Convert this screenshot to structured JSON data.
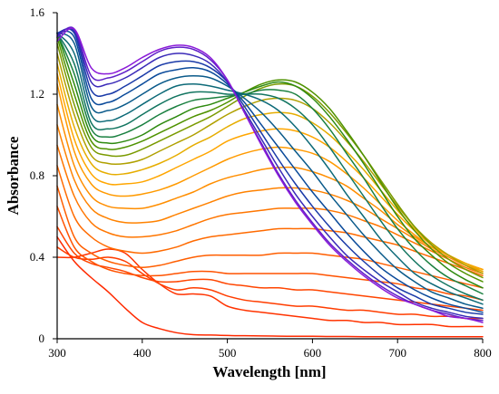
{
  "chart_data": {
    "type": "line",
    "title": "",
    "xlabel": "Wavelength [nm]",
    "ylabel": "Absorbance",
    "xlim": [
      300,
      800
    ],
    "ylim": [
      0,
      1.6
    ],
    "x_ticks": [
      300,
      400,
      500,
      600,
      700,
      800
    ],
    "y_ticks": [
      0,
      0.4,
      0.8,
      1.2,
      1.6
    ],
    "y_tick_labels": [
      "0",
      "0.4",
      "0.8",
      "1.2",
      "1.6"
    ],
    "grid": false,
    "legend": "none",
    "x": [
      300,
      320,
      340,
      360,
      380,
      400,
      420,
      440,
      460,
      480,
      500,
      520,
      540,
      560,
      580,
      600,
      620,
      640,
      660,
      680,
      700,
      720,
      740,
      760,
      780,
      800
    ],
    "series": [
      {
        "color": "#ff2a00",
        "values": [
          0.5,
          0.38,
          0.3,
          0.23,
          0.15,
          0.08,
          0.05,
          0.03,
          0.02,
          0.018,
          0.016,
          0.015,
          0.014,
          0.013,
          0.012,
          0.012,
          0.011,
          0.011,
          0.01,
          0.01,
          0.01,
          0.01,
          0.01,
          0.01,
          0.01,
          0.01
        ]
      },
      {
        "color": "#ff3300",
        "values": [
          0.4,
          0.4,
          0.42,
          0.44,
          0.42,
          0.34,
          0.27,
          0.22,
          0.22,
          0.21,
          0.16,
          0.14,
          0.13,
          0.12,
          0.11,
          0.1,
          0.09,
          0.09,
          0.08,
          0.08,
          0.07,
          0.07,
          0.07,
          0.06,
          0.06,
          0.06
        ]
      },
      {
        "color": "#ff3d00",
        "values": [
          0.45,
          0.4,
          0.39,
          0.4,
          0.38,
          0.32,
          0.27,
          0.24,
          0.25,
          0.24,
          0.21,
          0.19,
          0.18,
          0.17,
          0.16,
          0.16,
          0.15,
          0.14,
          0.14,
          0.13,
          0.12,
          0.12,
          0.11,
          0.11,
          0.1,
          0.1
        ]
      },
      {
        "color": "#ff4500",
        "values": [
          0.55,
          0.42,
          0.37,
          0.35,
          0.33,
          0.3,
          0.28,
          0.28,
          0.29,
          0.29,
          0.27,
          0.26,
          0.25,
          0.25,
          0.24,
          0.24,
          0.23,
          0.22,
          0.21,
          0.2,
          0.19,
          0.18,
          0.17,
          0.16,
          0.15,
          0.14
        ]
      },
      {
        "color": "#ff5200",
        "values": [
          0.65,
          0.45,
          0.38,
          0.34,
          0.32,
          0.31,
          0.31,
          0.32,
          0.33,
          0.33,
          0.32,
          0.32,
          0.32,
          0.32,
          0.32,
          0.32,
          0.31,
          0.3,
          0.29,
          0.28,
          0.27,
          0.25,
          0.24,
          0.22,
          0.21,
          0.19
        ]
      },
      {
        "color": "#ff5e00",
        "values": [
          0.75,
          0.5,
          0.42,
          0.38,
          0.36,
          0.35,
          0.36,
          0.38,
          0.4,
          0.41,
          0.41,
          0.41,
          0.41,
          0.42,
          0.42,
          0.42,
          0.41,
          0.4,
          0.39,
          0.37,
          0.35,
          0.33,
          0.31,
          0.29,
          0.27,
          0.25
        ]
      },
      {
        "color": "#ff6a00",
        "values": [
          0.85,
          0.6,
          0.5,
          0.45,
          0.43,
          0.42,
          0.43,
          0.45,
          0.48,
          0.5,
          0.51,
          0.52,
          0.53,
          0.54,
          0.54,
          0.54,
          0.53,
          0.52,
          0.5,
          0.48,
          0.46,
          0.43,
          0.4,
          0.37,
          0.34,
          0.31
        ]
      },
      {
        "color": "#ff7600",
        "values": [
          0.95,
          0.7,
          0.57,
          0.52,
          0.5,
          0.5,
          0.51,
          0.53,
          0.56,
          0.59,
          0.61,
          0.62,
          0.63,
          0.64,
          0.64,
          0.64,
          0.63,
          0.61,
          0.58,
          0.55,
          0.51,
          0.47,
          0.43,
          0.39,
          0.35,
          0.32
        ]
      },
      {
        "color": "#ff8200",
        "values": [
          1.05,
          0.78,
          0.64,
          0.59,
          0.57,
          0.57,
          0.58,
          0.61,
          0.64,
          0.67,
          0.7,
          0.72,
          0.73,
          0.74,
          0.74,
          0.73,
          0.71,
          0.68,
          0.64,
          0.59,
          0.54,
          0.49,
          0.44,
          0.4,
          0.36,
          0.33
        ]
      },
      {
        "color": "#ff8e00",
        "values": [
          1.15,
          0.85,
          0.7,
          0.65,
          0.64,
          0.64,
          0.66,
          0.69,
          0.72,
          0.76,
          0.79,
          0.81,
          0.83,
          0.84,
          0.84,
          0.82,
          0.79,
          0.75,
          0.69,
          0.63,
          0.56,
          0.5,
          0.45,
          0.41,
          0.37,
          0.34
        ]
      },
      {
        "color": "#ff9a00",
        "values": [
          1.25,
          0.92,
          0.76,
          0.71,
          0.7,
          0.71,
          0.73,
          0.76,
          0.8,
          0.84,
          0.88,
          0.91,
          0.93,
          0.94,
          0.93,
          0.91,
          0.87,
          0.81,
          0.74,
          0.66,
          0.58,
          0.51,
          0.45,
          0.41,
          0.37,
          0.34
        ]
      },
      {
        "color": "#ffa600",
        "values": [
          1.3,
          0.98,
          0.81,
          0.76,
          0.76,
          0.77,
          0.8,
          0.84,
          0.88,
          0.92,
          0.97,
          1.0,
          1.02,
          1.03,
          1.02,
          0.99,
          0.94,
          0.87,
          0.79,
          0.7,
          0.61,
          0.53,
          0.46,
          0.41,
          0.37,
          0.34
        ]
      },
      {
        "color": "#e6ad00",
        "values": [
          1.35,
          1.04,
          0.86,
          0.81,
          0.81,
          0.83,
          0.86,
          0.9,
          0.95,
          0.99,
          1.04,
          1.08,
          1.1,
          1.11,
          1.1,
          1.06,
          1.0,
          0.92,
          0.83,
          0.73,
          0.63,
          0.54,
          0.47,
          0.41,
          0.37,
          0.33
        ]
      },
      {
        "color": "#b0a000",
        "values": [
          1.4,
          1.1,
          0.9,
          0.86,
          0.86,
          0.88,
          0.92,
          0.96,
          1.0,
          1.05,
          1.1,
          1.14,
          1.17,
          1.18,
          1.17,
          1.13,
          1.06,
          0.97,
          0.87,
          0.76,
          0.65,
          0.55,
          0.47,
          0.41,
          0.36,
          0.32
        ]
      },
      {
        "color": "#7a9a00",
        "values": [
          1.45,
          1.15,
          0.94,
          0.9,
          0.9,
          0.93,
          0.97,
          1.01,
          1.05,
          1.09,
          1.14,
          1.19,
          1.23,
          1.25,
          1.24,
          1.19,
          1.11,
          1.01,
          0.9,
          0.78,
          0.66,
          0.55,
          0.46,
          0.39,
          0.34,
          0.3
        ]
      },
      {
        "color": "#4f9200",
        "values": [
          1.48,
          1.2,
          0.97,
          0.93,
          0.94,
          0.97,
          1.01,
          1.05,
          1.09,
          1.12,
          1.16,
          1.21,
          1.25,
          1.27,
          1.26,
          1.21,
          1.13,
          1.02,
          0.9,
          0.77,
          0.64,
          0.53,
          0.44,
          0.37,
          0.32,
          0.28
        ]
      },
      {
        "color": "#2e8a10",
        "values": [
          1.5,
          1.25,
          1.0,
          0.96,
          0.97,
          1.0,
          1.05,
          1.09,
          1.13,
          1.15,
          1.18,
          1.21,
          1.24,
          1.26,
          1.24,
          1.18,
          1.09,
          0.98,
          0.86,
          0.73,
          0.6,
          0.49,
          0.41,
          0.34,
          0.29,
          0.25
        ]
      },
      {
        "color": "#1a8040",
        "values": [
          1.5,
          1.3,
          1.03,
          0.99,
          1.01,
          1.05,
          1.1,
          1.14,
          1.17,
          1.18,
          1.19,
          1.2,
          1.22,
          1.22,
          1.2,
          1.13,
          1.03,
          0.91,
          0.79,
          0.66,
          0.54,
          0.44,
          0.36,
          0.3,
          0.26,
          0.22
        ]
      },
      {
        "color": "#127560",
        "values": [
          1.5,
          1.35,
          1.06,
          1.03,
          1.05,
          1.1,
          1.15,
          1.19,
          1.21,
          1.21,
          1.2,
          1.2,
          1.2,
          1.18,
          1.13,
          1.05,
          0.94,
          0.82,
          0.7,
          0.58,
          0.47,
          0.38,
          0.31,
          0.26,
          0.22,
          0.19
        ]
      },
      {
        "color": "#0d6a78",
        "values": [
          1.5,
          1.4,
          1.1,
          1.07,
          1.1,
          1.15,
          1.2,
          1.24,
          1.25,
          1.24,
          1.22,
          1.2,
          1.17,
          1.12,
          1.04,
          0.94,
          0.83,
          0.71,
          0.6,
          0.49,
          0.4,
          0.32,
          0.27,
          0.23,
          0.2,
          0.17
        ]
      },
      {
        "color": "#0a5a8a",
        "values": [
          1.5,
          1.45,
          1.14,
          1.12,
          1.15,
          1.2,
          1.25,
          1.28,
          1.29,
          1.28,
          1.24,
          1.18,
          1.11,
          1.02,
          0.92,
          0.82,
          0.71,
          0.61,
          0.51,
          0.42,
          0.34,
          0.28,
          0.23,
          0.2,
          0.17,
          0.15
        ]
      },
      {
        "color": "#0a4a9a",
        "values": [
          1.5,
          1.48,
          1.18,
          1.16,
          1.2,
          1.25,
          1.3,
          1.32,
          1.33,
          1.31,
          1.25,
          1.16,
          1.05,
          0.94,
          0.83,
          0.72,
          0.62,
          0.52,
          0.43,
          0.35,
          0.29,
          0.24,
          0.2,
          0.17,
          0.15,
          0.13
        ]
      },
      {
        "color": "#1a3aa8",
        "values": [
          1.5,
          1.5,
          1.22,
          1.2,
          1.24,
          1.29,
          1.34,
          1.36,
          1.36,
          1.33,
          1.26,
          1.14,
          1.01,
          0.88,
          0.76,
          0.65,
          0.55,
          0.46,
          0.38,
          0.31,
          0.25,
          0.21,
          0.17,
          0.15,
          0.13,
          0.12
        ]
      },
      {
        "color": "#3a2ab8",
        "values": [
          1.49,
          1.51,
          1.26,
          1.25,
          1.28,
          1.33,
          1.38,
          1.4,
          1.39,
          1.35,
          1.26,
          1.12,
          0.98,
          0.84,
          0.71,
          0.6,
          0.5,
          0.41,
          0.34,
          0.28,
          0.23,
          0.18,
          0.15,
          0.13,
          0.11,
          0.1
        ]
      },
      {
        "color": "#6020c8",
        "values": [
          1.48,
          1.52,
          1.29,
          1.28,
          1.31,
          1.36,
          1.41,
          1.43,
          1.42,
          1.37,
          1.27,
          1.11,
          0.96,
          0.81,
          0.68,
          0.57,
          0.47,
          0.39,
          0.32,
          0.26,
          0.21,
          0.17,
          0.14,
          0.12,
          0.1,
          0.09
        ]
      },
      {
        "color": "#8a1ad8",
        "values": [
          1.46,
          1.52,
          1.33,
          1.3,
          1.33,
          1.38,
          1.42,
          1.44,
          1.43,
          1.38,
          1.27,
          1.11,
          0.95,
          0.8,
          0.67,
          0.56,
          0.46,
          0.38,
          0.31,
          0.25,
          0.2,
          0.17,
          0.14,
          0.11,
          0.1,
          0.08
        ]
      }
    ]
  }
}
